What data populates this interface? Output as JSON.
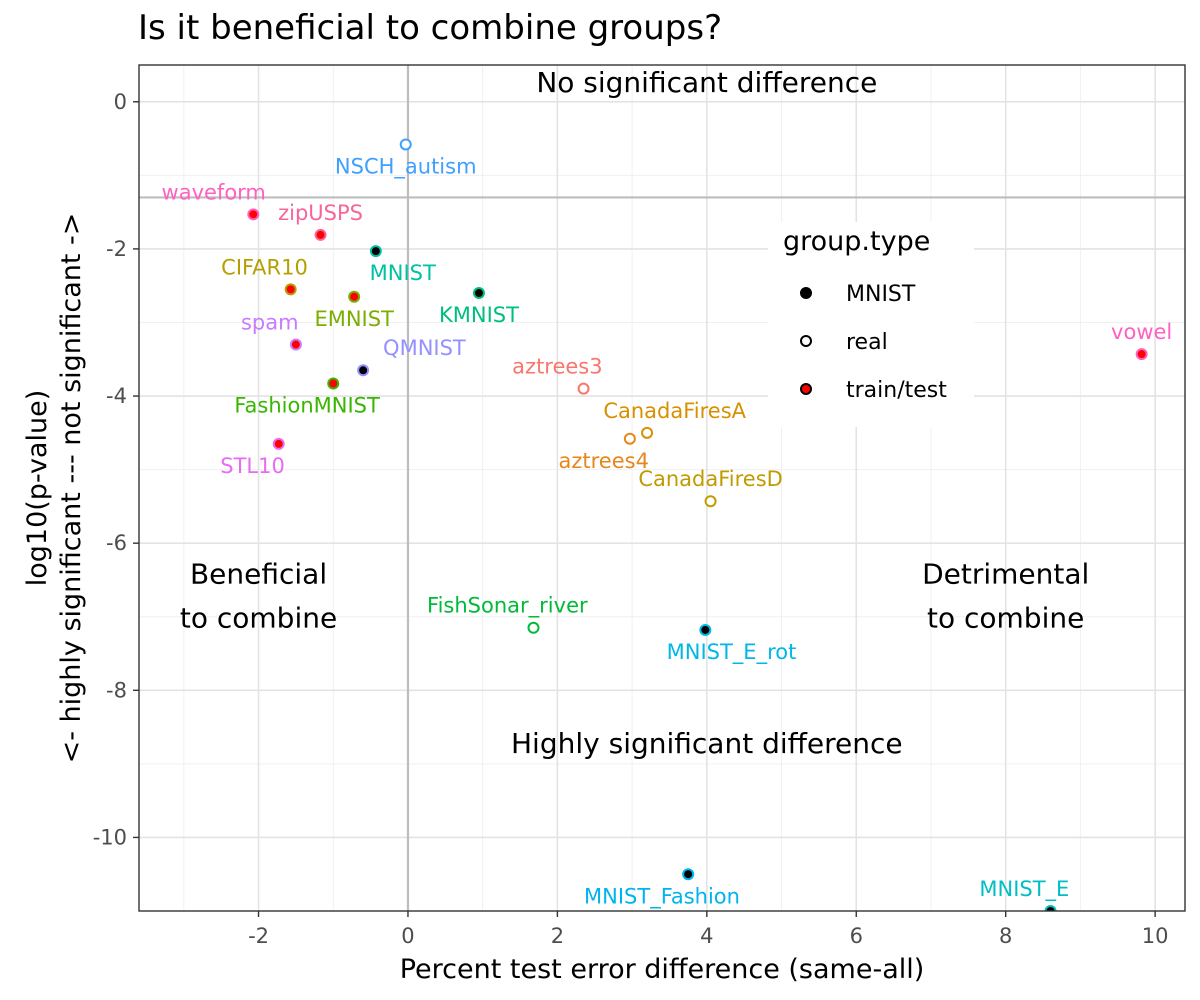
{
  "chart_data": {
    "type": "scatter",
    "title": "Is it beneficial to combine groups?",
    "xlabel": "Percent test error difference (same-all)",
    "ylabel_lines": [
      "log10(p-value)",
      "<- highly significant --- not significant ->"
    ],
    "xlim": [
      -3.6,
      10.4
    ],
    "ylim": [
      -11.0,
      0.5
    ],
    "grid": true,
    "x_ticks": [
      {
        "value": -2,
        "label": "-2"
      },
      {
        "value": 0,
        "label": "0"
      },
      {
        "value": 2,
        "label": "2"
      },
      {
        "value": 4,
        "label": "4"
      },
      {
        "value": 6,
        "label": "6"
      },
      {
        "value": 8,
        "label": "8"
      },
      {
        "value": 10,
        "label": "10"
      }
    ],
    "y_ticks": [
      {
        "value": 0,
        "label": "0"
      },
      {
        "value": -2,
        "label": "-2"
      },
      {
        "value": -4,
        "label": "-4"
      },
      {
        "value": -6,
        "label": "-6"
      },
      {
        "value": -8,
        "label": "-8"
      },
      {
        "value": -10,
        "label": "-10"
      }
    ],
    "reference_lines": {
      "x": 0,
      "y": -1.3
    },
    "annotations": [
      {
        "text": "No significant difference",
        "x": 4.0,
        "y": 0.13,
        "lines": [
          "No significant difference"
        ]
      },
      {
        "text": "Highly significant difference",
        "x": 4.0,
        "y": -8.85,
        "lines": [
          "Highly significant difference"
        ]
      },
      {
        "text": "Beneficial to combine",
        "x": -2.0,
        "y": -6.55,
        "lines": [
          "Beneficial",
          "to combine"
        ]
      },
      {
        "text": "Detrimental to combine",
        "x": 8.0,
        "y": -6.55,
        "lines": [
          "Detrimental",
          "to combine"
        ]
      }
    ],
    "legend": {
      "title": "group.type",
      "position": "right",
      "entries": [
        {
          "label": "MNIST",
          "fill": "#000000",
          "stroke": "#000000"
        },
        {
          "label": "real",
          "fill": "#ffffff",
          "stroke": "#000000"
        },
        {
          "label": "train/test",
          "fill": "#ff0000",
          "stroke": "#000000"
        }
      ]
    },
    "points": [
      {
        "label": "NSCH_autism",
        "x": -0.03,
        "y": -0.58,
        "group_type": "real",
        "color": "#3FA0FF",
        "label_x": -0.03,
        "label_y": -0.88
      },
      {
        "label": "waveform",
        "x": -2.07,
        "y": -1.53,
        "group_type": "train/test",
        "color": "#FF61C3",
        "label_x": -2.6,
        "label_y": -1.23
      },
      {
        "label": "zipUSPS",
        "x": -1.17,
        "y": -1.81,
        "group_type": "train/test",
        "color": "#F8659A",
        "label_x": -1.17,
        "label_y": -1.51
      },
      {
        "label": "MNIST",
        "x": -0.43,
        "y": -2.03,
        "group_type": "MNIST",
        "color": "#00C1A3",
        "label_x": -0.07,
        "label_y": -2.33
      },
      {
        "label": "CIFAR10",
        "x": -1.57,
        "y": -2.55,
        "group_type": "train/test",
        "color": "#B4A000",
        "label_x": -1.92,
        "label_y": -2.25
      },
      {
        "label": "EMNIST",
        "x": -0.72,
        "y": -2.65,
        "group_type": "train/test",
        "color": "#7CAE00",
        "label_x": -0.72,
        "label_y": -2.95
      },
      {
        "label": "KMNIST",
        "x": 0.95,
        "y": -2.6,
        "group_type": "MNIST",
        "color": "#00BF7D",
        "label_x": 0.95,
        "label_y": -2.9
      },
      {
        "label": "spam",
        "x": -1.5,
        "y": -3.3,
        "group_type": "train/test",
        "color": "#C77CFF",
        "label_x": -1.85,
        "label_y": -3.0
      },
      {
        "label": "QMNIST",
        "x": -0.6,
        "y": -3.65,
        "group_type": "MNIST",
        "color": "#9590FF",
        "label_x": 0.22,
        "label_y": -3.35
      },
      {
        "label": "vowel",
        "x": 9.82,
        "y": -3.43,
        "group_type": "train/test",
        "color": "#FF61C3",
        "label_x": 9.82,
        "label_y": -3.13
      },
      {
        "label": "aztrees3",
        "x": 2.35,
        "y": -3.9,
        "group_type": "real",
        "color": "#F8766D",
        "label_x": 2.0,
        "label_y": -3.6
      },
      {
        "label": "FashionMNIST",
        "x": -1.0,
        "y": -3.83,
        "group_type": "train/test",
        "color": "#39B600",
        "label_x": -1.35,
        "label_y": -4.13
      },
      {
        "label": "CanadaFiresA",
        "x": 3.2,
        "y": -4.5,
        "group_type": "real",
        "color": "#D89000",
        "label_x": 3.57,
        "label_y": -4.2
      },
      {
        "label": "aztrees4",
        "x": 2.97,
        "y": -4.58,
        "group_type": "real",
        "color": "#E7861B",
        "label_x": 2.62,
        "label_y": -4.88
      },
      {
        "label": "STL10",
        "x": -1.73,
        "y": -4.65,
        "group_type": "train/test",
        "color": "#E76BF3",
        "label_x": -2.08,
        "label_y": -4.95
      },
      {
        "label": "CanadaFiresD",
        "x": 4.05,
        "y": -5.43,
        "group_type": "real",
        "color": "#C09B00",
        "label_x": 4.05,
        "label_y": -5.13
      },
      {
        "label": "FishSonar_river",
        "x": 1.68,
        "y": -7.15,
        "group_type": "real",
        "color": "#00BA38",
        "label_x": 1.33,
        "label_y": -6.85
      },
      {
        "label": "MNIST_E_rot",
        "x": 3.98,
        "y": -7.18,
        "group_type": "MNIST",
        "color": "#00B8E7",
        "label_x": 4.33,
        "label_y": -7.48
      },
      {
        "label": "MNIST_Fashion",
        "x": 3.75,
        "y": -10.5,
        "group_type": "MNIST",
        "color": "#00B4EF",
        "label_x": 3.4,
        "label_y": -10.8
      },
      {
        "label": "MNIST_E",
        "x": 8.6,
        "y": -11.0,
        "group_type": "MNIST",
        "color": "#00BFC4",
        "label_x": 8.25,
        "label_y": -10.7
      }
    ]
  }
}
